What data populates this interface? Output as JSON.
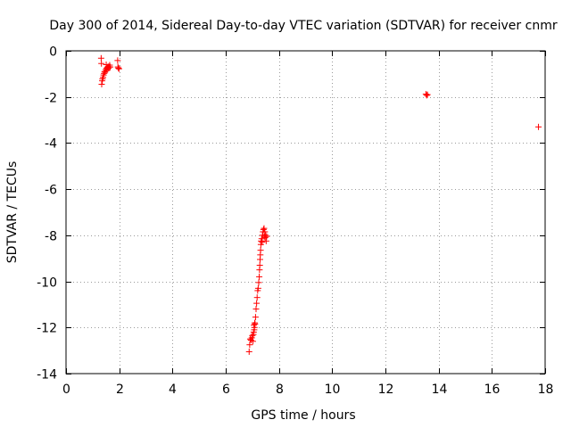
{
  "chart_data": {
    "type": "scatter",
    "title": "Day 300 of 2014, Sidereal Day-to-day VTEC variation (SDTVAR) for receiver cnmr",
    "xlabel": "GPS time / hours",
    "ylabel": "SDTVAR / TECUs",
    "xlim": [
      0,
      18
    ],
    "ylim": [
      -14,
      0
    ],
    "xticks": [
      0,
      2,
      4,
      6,
      8,
      10,
      12,
      14,
      16,
      18
    ],
    "xtick_labels": [
      "0",
      "2",
      "4",
      "6",
      "8",
      "10",
      "12",
      "14",
      "16",
      "18"
    ],
    "yticks": [
      0,
      -2,
      -4,
      -6,
      -8,
      -10,
      -12,
      -14
    ],
    "ytick_labels": [
      "0",
      "-2",
      "-4",
      "-6",
      "-8",
      "-10",
      "-12",
      "-14"
    ],
    "grid": true,
    "marker": "+",
    "color": "#ff0000",
    "series": [
      {
        "name": "SDTVAR",
        "points": [
          [
            1.32,
            -0.32
          ],
          [
            1.33,
            -0.55
          ],
          [
            1.34,
            -1.45
          ],
          [
            1.36,
            -1.3
          ],
          [
            1.37,
            -1.22
          ],
          [
            1.39,
            -1.15
          ],
          [
            1.41,
            -1.05
          ],
          [
            1.43,
            -0.98
          ],
          [
            1.45,
            -0.9
          ],
          [
            1.47,
            -0.92
          ],
          [
            1.49,
            -0.82
          ],
          [
            1.51,
            -0.6
          ],
          [
            1.52,
            -0.75
          ],
          [
            1.54,
            -0.85
          ],
          [
            1.56,
            -0.72
          ],
          [
            1.58,
            -0.68
          ],
          [
            1.6,
            -0.75
          ],
          [
            1.62,
            -0.7
          ],
          [
            1.64,
            -0.62
          ],
          [
            1.66,
            -0.7
          ],
          [
            1.94,
            -0.42
          ],
          [
            1.95,
            -0.7
          ],
          [
            1.97,
            -0.75
          ],
          [
            1.99,
            -0.78
          ],
          [
            13.52,
            -1.88
          ],
          [
            13.55,
            -1.93
          ],
          [
            13.58,
            -1.9
          ],
          [
            17.75,
            -3.3
          ],
          [
            6.88,
            -13.05
          ],
          [
            6.9,
            -12.75
          ],
          [
            6.92,
            -12.5
          ],
          [
            6.95,
            -12.55
          ],
          [
            6.98,
            -12.45
          ],
          [
            7.0,
            -12.35
          ],
          [
            7.02,
            -12.6
          ],
          [
            7.04,
            -12.3
          ],
          [
            7.05,
            -12.2
          ],
          [
            7.06,
            -11.9
          ],
          [
            7.07,
            -12.1
          ],
          [
            7.08,
            -12.0
          ],
          [
            7.09,
            -11.8
          ],
          [
            7.1,
            -11.85
          ],
          [
            7.12,
            -11.55
          ],
          [
            7.14,
            -11.2
          ],
          [
            7.16,
            -10.95
          ],
          [
            7.18,
            -10.7
          ],
          [
            7.2,
            -10.4
          ],
          [
            7.22,
            -10.3
          ],
          [
            7.24,
            -10.05
          ],
          [
            7.26,
            -9.8
          ],
          [
            7.27,
            -9.5
          ],
          [
            7.28,
            -9.3
          ],
          [
            7.29,
            -9.05
          ],
          [
            7.3,
            -8.85
          ],
          [
            7.31,
            -8.65
          ],
          [
            7.32,
            -8.4
          ],
          [
            7.33,
            -8.25
          ],
          [
            7.35,
            -8.15
          ],
          [
            7.37,
            -8.3
          ],
          [
            7.38,
            -8.0
          ],
          [
            7.4,
            -7.85
          ],
          [
            7.42,
            -7.75
          ],
          [
            7.44,
            -7.7
          ],
          [
            7.45,
            -8.05
          ],
          [
            7.47,
            -7.85
          ],
          [
            7.48,
            -8.1
          ],
          [
            7.5,
            -8.0
          ],
          [
            7.52,
            -8.25
          ],
          [
            7.54,
            -8.05
          ]
        ]
      }
    ]
  }
}
